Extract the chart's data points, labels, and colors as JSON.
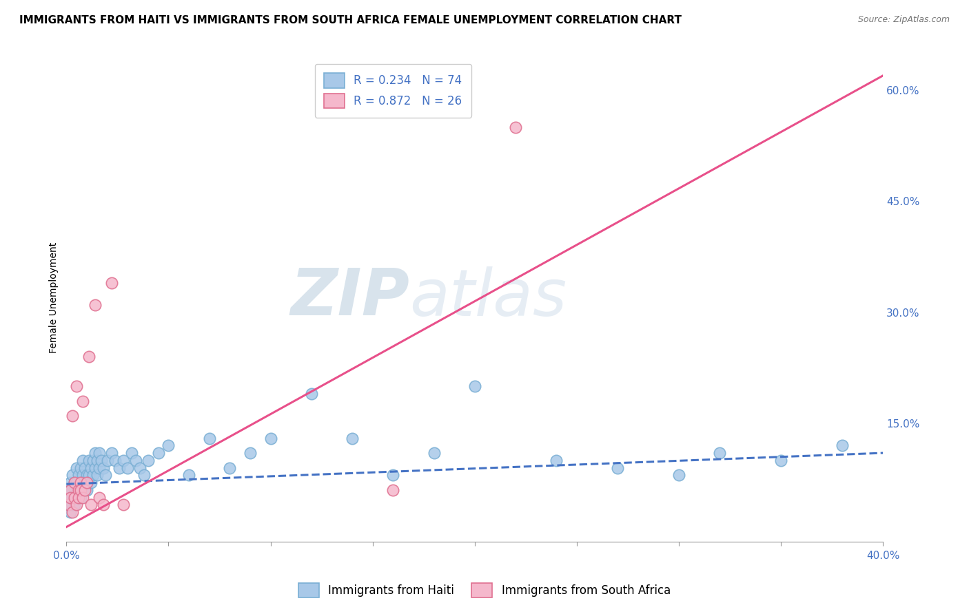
{
  "title": "IMMIGRANTS FROM HAITI VS IMMIGRANTS FROM SOUTH AFRICA FEMALE UNEMPLOYMENT CORRELATION CHART",
  "source": "Source: ZipAtlas.com",
  "ylabel": "Female Unemployment",
  "xlim": [
    0.0,
    0.4
  ],
  "ylim": [
    -0.01,
    0.65
  ],
  "xticks": [
    0.0,
    0.05,
    0.1,
    0.15,
    0.2,
    0.25,
    0.3,
    0.35,
    0.4
  ],
  "right_yticks": [
    0.15,
    0.3,
    0.45,
    0.6
  ],
  "haiti_color": "#a8c8e8",
  "haiti_edge": "#7aafd4",
  "sa_color": "#f5b8cc",
  "sa_edge": "#e07090",
  "haiti_trend_color": "#4472c4",
  "sa_trend_color": "#e8508a",
  "background_color": "#ffffff",
  "grid_color": "#cccccc",
  "title_fontsize": 11,
  "source_fontsize": 9,
  "axis_label_fontsize": 10,
  "tick_fontsize": 11,
  "legend_fontsize": 12,
  "haiti_scatter_x": [
    0.001,
    0.001,
    0.002,
    0.002,
    0.002,
    0.003,
    0.003,
    0.003,
    0.003,
    0.004,
    0.004,
    0.004,
    0.005,
    0.005,
    0.005,
    0.005,
    0.006,
    0.006,
    0.006,
    0.007,
    0.007,
    0.007,
    0.008,
    0.008,
    0.008,
    0.009,
    0.009,
    0.01,
    0.01,
    0.01,
    0.011,
    0.011,
    0.012,
    0.012,
    0.013,
    0.013,
    0.014,
    0.014,
    0.015,
    0.015,
    0.016,
    0.016,
    0.017,
    0.018,
    0.019,
    0.02,
    0.022,
    0.024,
    0.026,
    0.028,
    0.03,
    0.032,
    0.034,
    0.036,
    0.038,
    0.04,
    0.045,
    0.05,
    0.06,
    0.07,
    0.08,
    0.09,
    0.1,
    0.12,
    0.14,
    0.16,
    0.18,
    0.2,
    0.24,
    0.27,
    0.3,
    0.32,
    0.35,
    0.38
  ],
  "haiti_scatter_y": [
    0.04,
    0.06,
    0.03,
    0.05,
    0.07,
    0.04,
    0.06,
    0.08,
    0.05,
    0.06,
    0.04,
    0.07,
    0.05,
    0.07,
    0.09,
    0.06,
    0.05,
    0.08,
    0.06,
    0.07,
    0.05,
    0.09,
    0.06,
    0.08,
    0.1,
    0.07,
    0.09,
    0.07,
    0.06,
    0.08,
    0.08,
    0.1,
    0.07,
    0.09,
    0.08,
    0.1,
    0.09,
    0.11,
    0.08,
    0.1,
    0.09,
    0.11,
    0.1,
    0.09,
    0.08,
    0.1,
    0.11,
    0.1,
    0.09,
    0.1,
    0.09,
    0.11,
    0.1,
    0.09,
    0.08,
    0.1,
    0.11,
    0.12,
    0.08,
    0.13,
    0.09,
    0.11,
    0.13,
    0.19,
    0.13,
    0.08,
    0.11,
    0.2,
    0.1,
    0.09,
    0.08,
    0.11,
    0.1,
    0.12
  ],
  "sa_scatter_x": [
    0.001,
    0.002,
    0.002,
    0.003,
    0.003,
    0.004,
    0.004,
    0.005,
    0.005,
    0.006,
    0.006,
    0.007,
    0.007,
    0.008,
    0.008,
    0.009,
    0.01,
    0.011,
    0.012,
    0.014,
    0.016,
    0.018,
    0.022,
    0.028,
    0.16,
    0.22
  ],
  "sa_scatter_y": [
    0.04,
    0.06,
    0.05,
    0.03,
    0.16,
    0.05,
    0.07,
    0.04,
    0.2,
    0.06,
    0.05,
    0.07,
    0.06,
    0.18,
    0.05,
    0.06,
    0.07,
    0.24,
    0.04,
    0.31,
    0.05,
    0.04,
    0.34,
    0.04,
    0.06,
    0.55
  ],
  "haiti_trend_x": [
    0.0,
    0.4
  ],
  "haiti_trend_y": [
    0.068,
    0.11
  ],
  "sa_trend_x": [
    0.0,
    0.4
  ],
  "sa_trend_y": [
    0.01,
    0.62
  ],
  "legend_label_haiti": "R = 0.234   N = 74",
  "legend_label_sa": "R = 0.872   N = 26",
  "bottom_legend_haiti": "Immigrants from Haiti",
  "bottom_legend_sa": "Immigrants from South Africa",
  "watermark_zip": "ZIP",
  "watermark_atlas": "atlas"
}
